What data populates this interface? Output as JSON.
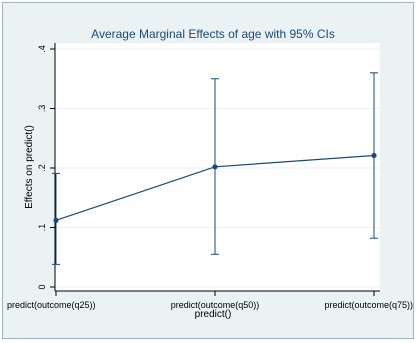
{
  "chart_data": {
    "type": "line",
    "title": "Average Marginal Effects of age with 95% CIs",
    "xlabel": "predict()",
    "ylabel": "Effects on predict()",
    "categories": [
      "predict(outcome(q25))",
      "predict(outcome(q50))",
      "predict(outcome(q75))"
    ],
    "series": [
      {
        "values": [
          0.112,
          0.202,
          0.221
        ],
        "ci_lower": [
          0.038,
          0.055,
          0.082
        ],
        "ci_upper": [
          0.191,
          0.35,
          0.36
        ]
      }
    ],
    "ylim": [
      0,
      0.4
    ],
    "yticks": [
      0,
      0.1,
      0.2,
      0.3,
      0.4
    ],
    "ytick_labels": [
      "0",
      ".1",
      ".2",
      ".3",
      ".4"
    ],
    "grid": "horizontal",
    "colors": {
      "series": "#1a4a7a",
      "background": "#eaf2f3",
      "plot_background": "#ffffff",
      "grid": "#eaf2f3"
    }
  }
}
